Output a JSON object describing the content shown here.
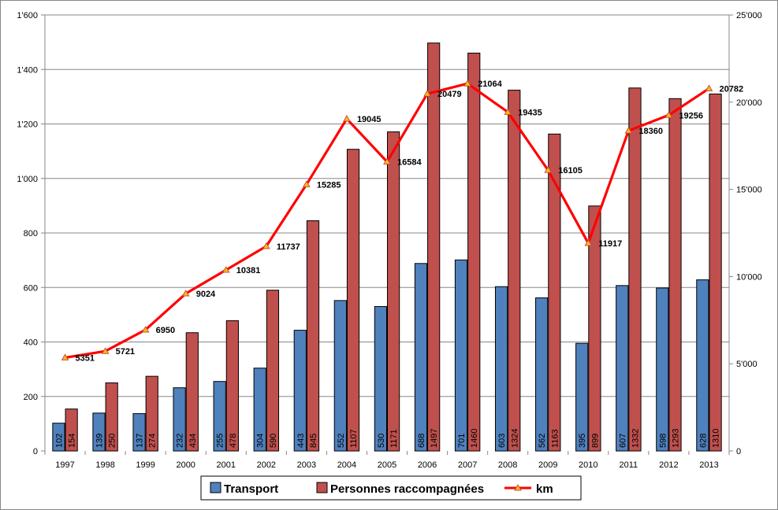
{
  "chart_data": {
    "type": "bar",
    "categories": [
      "1997",
      "1998",
      "1999",
      "2000",
      "2001",
      "2002",
      "2003",
      "2004",
      "2005",
      "2006",
      "2007",
      "2008",
      "2009",
      "2010",
      "2011",
      "2012",
      "2013"
    ],
    "series": [
      {
        "name": "Transport",
        "type": "bar",
        "axis": "left",
        "color": "#4f81bd",
        "values": [
          102,
          139,
          137,
          232,
          255,
          304,
          443,
          552,
          530,
          688,
          701,
          603,
          562,
          395,
          607,
          598,
          628
        ]
      },
      {
        "name": "Personnes raccompagnées",
        "type": "bar",
        "axis": "left",
        "color": "#c0504d",
        "values": [
          154,
          250,
          274,
          434,
          478,
          590,
          845,
          1107,
          1171,
          1497,
          1460,
          1324,
          1163,
          899,
          1332,
          1293,
          1310
        ]
      },
      {
        "name": "km",
        "type": "line",
        "axis": "right",
        "color": "#ff0000",
        "marker_color": "#ffc000",
        "values": [
          5351,
          5721,
          6950,
          9024,
          10381,
          11737,
          15285,
          19045,
          16584,
          20479,
          21064,
          19435,
          16105,
          11917,
          18360,
          19256,
          20782
        ]
      }
    ],
    "y_left": {
      "min": 0,
      "max": 1600,
      "ticks": [
        0,
        200,
        400,
        600,
        800,
        1000,
        1200,
        1400,
        1600
      ],
      "tick_labels": [
        "0",
        "200",
        "400",
        "600",
        "800",
        "1'000",
        "1'200",
        "1'400",
        "1'600"
      ]
    },
    "y_right": {
      "min": 0,
      "max": 25000,
      "ticks": [
        0,
        5000,
        10000,
        15000,
        20000,
        25000
      ],
      "tick_labels": [
        "0",
        "5'000",
        "10'000",
        "15'000",
        "20'000",
        "25'000"
      ]
    },
    "grid": true,
    "legend_position": "bottom",
    "title": "",
    "xlabel": "",
    "ylabel": ""
  },
  "legend": [
    {
      "label": "Transport",
      "kind": "bar",
      "color": "#4f81bd"
    },
    {
      "label": "Personnes raccompagnées",
      "kind": "bar",
      "color": "#c0504d"
    },
    {
      "label": "km",
      "kind": "line",
      "color": "#ff0000"
    }
  ]
}
